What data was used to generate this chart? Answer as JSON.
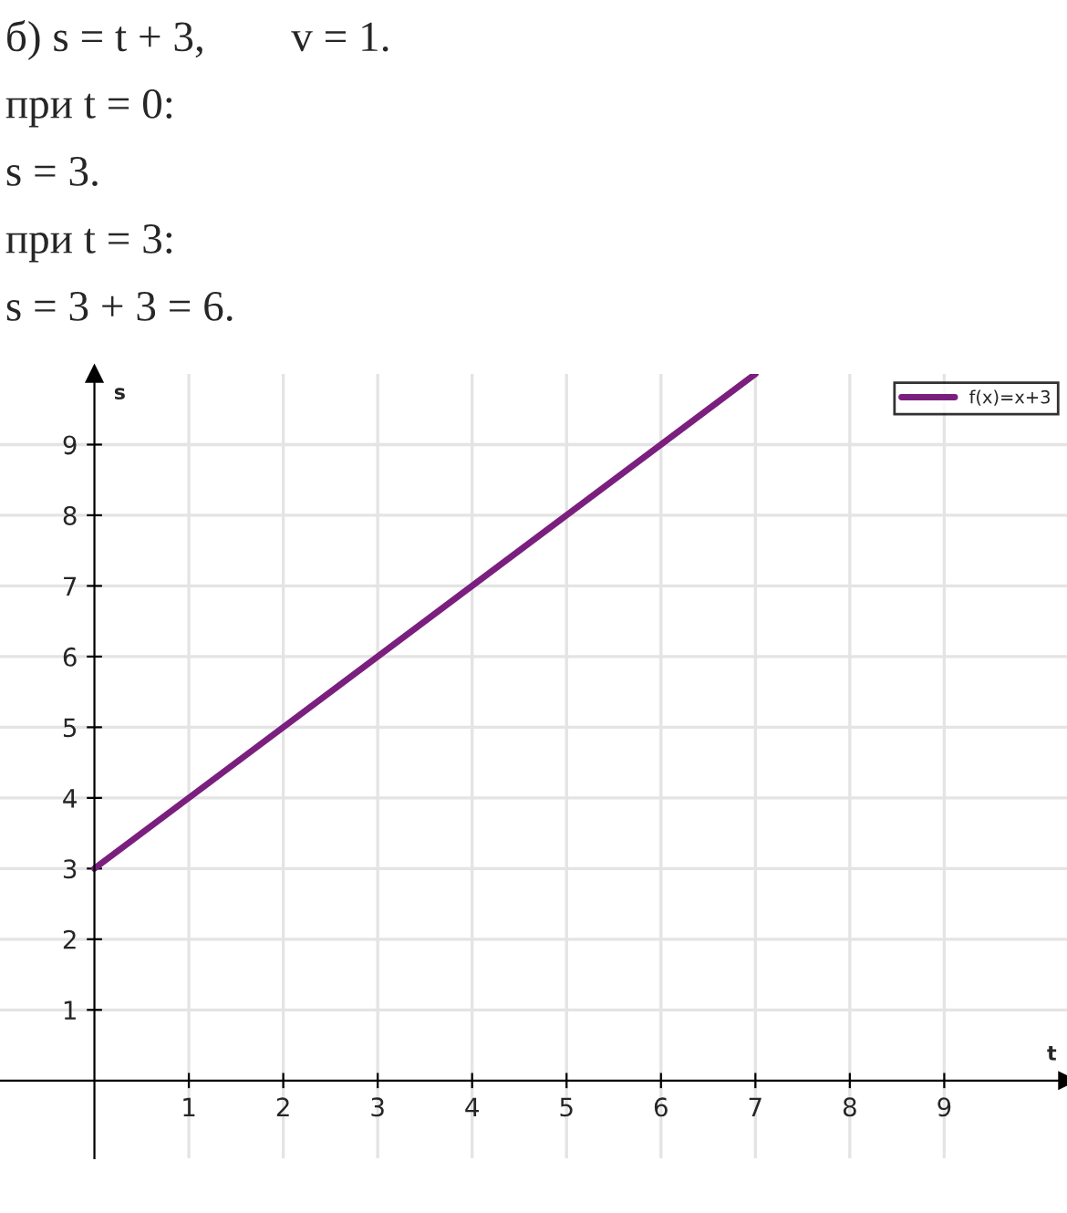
{
  "chart_data": {
    "type": "line",
    "xlabel": "t",
    "ylabel": "s",
    "annotations": [
      "б) s = t + 3,        v = 1.",
      "при t = 0:",
      "s = 3.",
      "при t = 3:",
      "s = 3 + 3 = 6."
    ],
    "x": [
      0,
      7
    ],
    "series": [
      {
        "name": "f(x)=x+3",
        "color": "#7b1f7f",
        "values": [
          3,
          10
        ]
      }
    ],
    "xlim": [
      -1,
      10.3
    ],
    "ylim": [
      -1.1,
      10
    ],
    "xticks": [
      1,
      2,
      3,
      4,
      5,
      6,
      7,
      8,
      9
    ],
    "yticks": [
      1,
      2,
      3,
      4,
      5,
      6,
      7,
      8,
      9
    ],
    "grid": true,
    "legend": "top right",
    "line_style": "solid",
    "marker": "none"
  }
}
